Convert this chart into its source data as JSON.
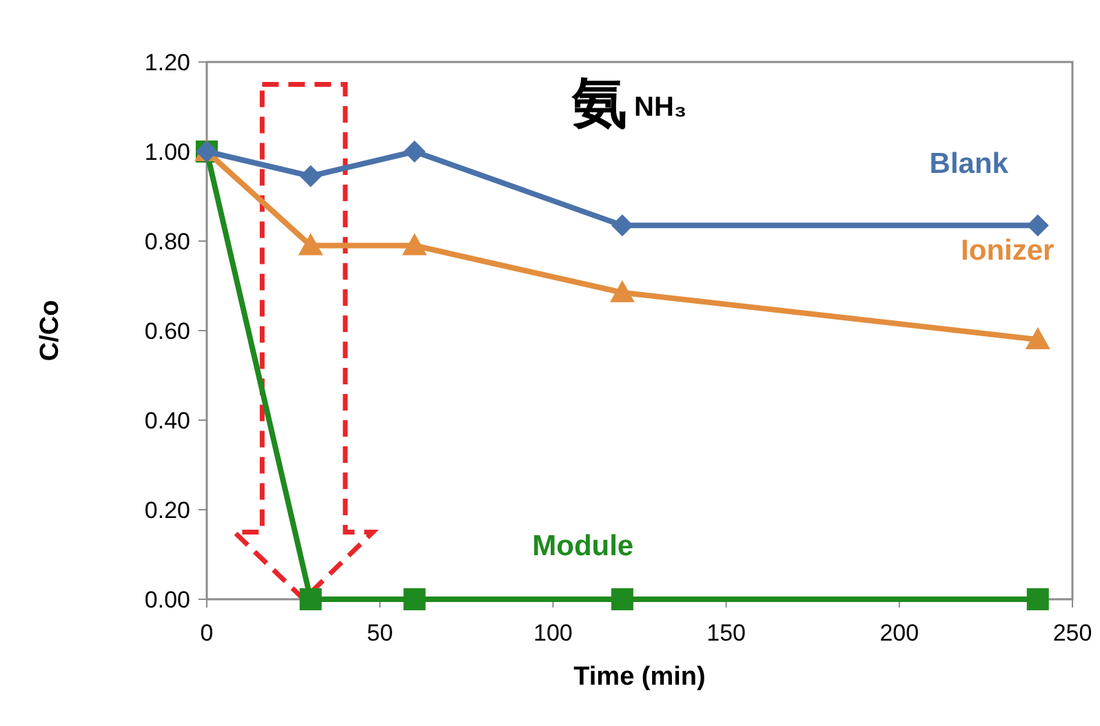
{
  "chart_data": {
    "type": "line",
    "xlabel": "Time (min)",
    "ylabel": "C/Co",
    "annotations": [
      "氨",
      "NH₃"
    ],
    "xlim": [
      0,
      250
    ],
    "xticks": [
      0,
      50,
      100,
      150,
      200,
      250
    ],
    "ylim": [
      0,
      1.2
    ],
    "yticks": [
      {
        "value": 0,
        "label": "0.00"
      },
      {
        "value": 0.2,
        "label": "0.20"
      },
      {
        "value": 0.4,
        "label": "0.40"
      },
      {
        "value": 0.6,
        "label": "0.60"
      },
      {
        "value": 0.8,
        "label": "0.80"
      },
      {
        "value": 1.0,
        "label": "1.00"
      },
      {
        "value": 1.2,
        "label": "1.20"
      }
    ],
    "x": [
      0,
      30,
      60,
      120,
      240
    ],
    "series": [
      {
        "name": "Blank",
        "color": "#4a72aa",
        "marker": "diamond",
        "values": [
          1.0,
          0.945,
          1.0,
          0.835,
          0.835
        ]
      },
      {
        "name": "Ionizer",
        "color": "#e38d3e",
        "marker": "triangle",
        "values": [
          1.0,
          0.79,
          0.79,
          0.685,
          0.58
        ]
      },
      {
        "name": "Module",
        "color": "#1f8a1f",
        "marker": "square",
        "values": [
          1.0,
          0.0,
          0.0,
          0.0,
          0.0
        ]
      }
    ],
    "grid": false
  }
}
